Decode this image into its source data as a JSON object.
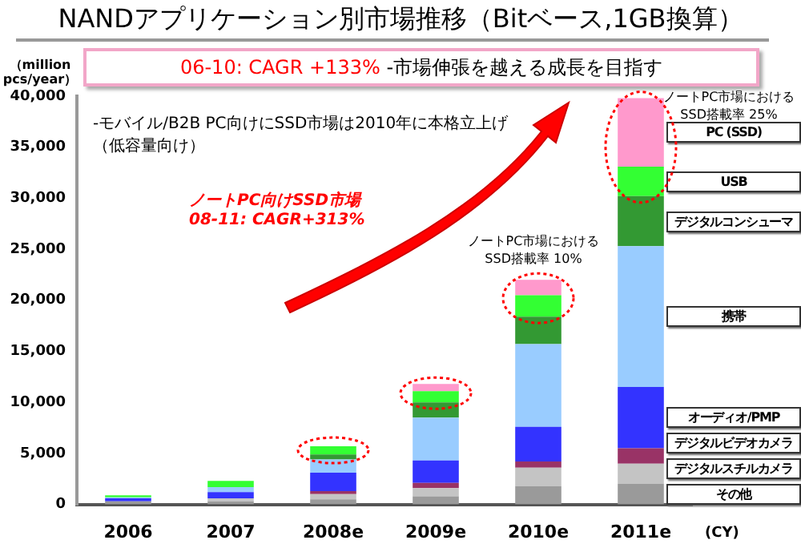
{
  "chart_data": {
    "type": "bar",
    "title": "NANDアプリケーション別市場推移（Bitベース,1GB換算）",
    "ylabel": "（million pcs/year）",
    "xlabel": "(CY)",
    "categories": [
      "2006",
      "2007",
      "2008e",
      "2009e",
      "2010e",
      "2011e"
    ],
    "stacked": true,
    "legend": "right",
    "ylim": [
      0,
      40000
    ],
    "yticks": [
      0,
      {
        "value": 5000,
        "label": "5,000"
      },
      {
        "value": 10000,
        "label": "10,000"
      },
      {
        "value": 15000,
        "label": "15,000"
      },
      {
        "value": 20000,
        "label": "20,000"
      },
      {
        "value": 25000,
        "label": "25,000"
      },
      {
        "value": 30000,
        "label": "30,000"
      },
      {
        "value": 35000,
        "label": "35,000"
      },
      {
        "value": 40000,
        "label": "40,000"
      }
    ],
    "series": [
      {
        "name": "その他",
        "color": "#9a9a9a",
        "values": [
          300,
          300,
          500,
          800,
          1800,
          2000
        ]
      },
      {
        "name": "デジタルスチルカメラ",
        "color": "#c4c4c4",
        "values": [
          null,
          300,
          500,
          800,
          1800,
          2000
        ]
      },
      {
        "name": "デジタルビデオカメラ",
        "color": "#993366",
        "values": [
          0,
          0,
          300,
          500,
          600,
          1500
        ]
      },
      {
        "name": "オーディオ/PMP",
        "color": "#3333ff",
        "values": [
          300,
          600,
          1800,
          2200,
          3400,
          6000
        ]
      },
      {
        "name": "携帯",
        "color": "#99ccff",
        "values": [
          100,
          500,
          1300,
          4200,
          8100,
          13800
        ]
      },
      {
        "name": "デジタルコンシューマ",
        "color": "#339933",
        "values": [
          0,
          0,
          500,
          1500,
          2700,
          4900
        ]
      },
      {
        "name": "USB",
        "color": "#33ff33",
        "values": [
          200,
          600,
          800,
          1100,
          2100,
          2900
        ]
      },
      {
        "name": "PC (SSD)",
        "color": "#ff99cc",
        "values": [
          0,
          0,
          0,
          700,
          1500,
          6700
        ]
      }
    ],
    "annotations": [
      "06-10: CAGR +133%",
      "-市場伸張を越える成長を目指す",
      "-モバイル/B2B PC向けにSSD市場は2010年に本格立上げ（低容量向け）",
      "ノートPC向けSSD市場 08-11: CAGR+313%",
      {
        "text": "ノートPC市場におけるSSD搭載率 10%",
        "x": "2010e",
        "y": 22000
      },
      {
        "text": "ノートPC市場におけるSSD搭載率 25%",
        "x": "2011e",
        "y": 39800
      }
    ]
  }
}
